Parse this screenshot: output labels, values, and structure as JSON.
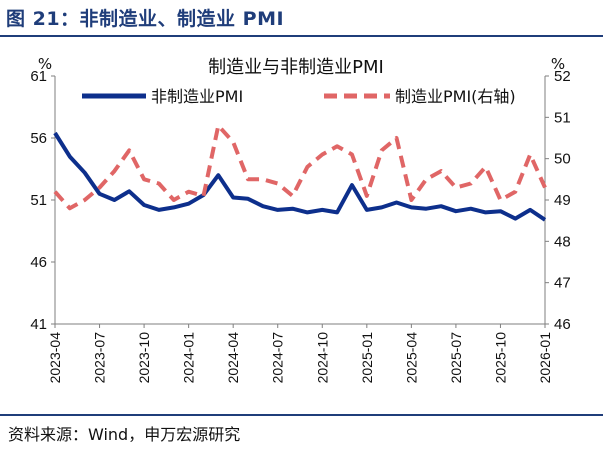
{
  "figure": {
    "title": "图 21：非制造业、制造业 PMI",
    "source": "资料来源：Wind，申万宏源研究"
  },
  "chart_data": {
    "type": "line",
    "title": "制造业与非制造业PMI",
    "y_left_unit": "%",
    "y_right_unit": "%",
    "y_left_lim": [
      41,
      61
    ],
    "y_left_ticks": [
      "61",
      "56",
      "51",
      "46",
      "41"
    ],
    "y_right_lim": [
      46,
      52
    ],
    "y_right_ticks": [
      "52",
      "51",
      "50",
      "49",
      "48",
      "47",
      "46"
    ],
    "x_tick_labels": [
      "2023-04",
      "2023-07",
      "2023-10",
      "2024-01",
      "2024-04",
      "2024-07",
      "2024-10",
      "2025-01",
      "2025-04",
      "2025-07",
      "2025-10",
      "2026-01"
    ],
    "x": [
      "2023-04",
      "2023-05",
      "2023-06",
      "2023-07",
      "2023-08",
      "2023-09",
      "2023-10",
      "2023-11",
      "2023-12",
      "2024-01",
      "2024-02",
      "2024-03",
      "2024-04",
      "2024-05",
      "2024-06",
      "2024-07",
      "2024-08",
      "2024-09",
      "2024-10",
      "2024-11",
      "2024-12",
      "2025-01",
      "2025-02",
      "2025-03",
      "2025-04",
      "2025-05",
      "2025-06",
      "2025-07",
      "2025-08",
      "2025-09",
      "2025-10",
      "2025-11",
      "2025-12",
      "2026-01"
    ],
    "grid": false,
    "legend_position": "top",
    "series": [
      {
        "name": "非制造业PMI",
        "axis": "left",
        "style": "solid",
        "color": "#0d2f8c",
        "values": [
          56.4,
          54.5,
          53.2,
          51.5,
          51.0,
          51.7,
          50.6,
          50.2,
          50.4,
          50.7,
          51.4,
          53.0,
          51.2,
          51.1,
          50.5,
          50.2,
          50.3,
          50.0,
          50.2,
          50.0,
          52.2,
          50.2,
          50.4,
          50.8,
          50.4,
          50.3,
          50.5,
          50.1,
          50.3,
          50.0,
          50.1,
          49.5,
          50.2,
          49.4
        ]
      },
      {
        "name": "制造业PMI(右轴)",
        "axis": "right",
        "style": "dashed",
        "color": "#e06666",
        "values": [
          49.2,
          48.8,
          49.0,
          49.3,
          49.7,
          50.2,
          49.5,
          49.4,
          49.0,
          49.2,
          49.1,
          50.8,
          50.4,
          49.5,
          49.5,
          49.4,
          49.1,
          49.8,
          50.1,
          50.3,
          50.1,
          49.1,
          50.2,
          50.5,
          49.0,
          49.5,
          49.7,
          49.3,
          49.4,
          49.8,
          49.0,
          49.2,
          50.1,
          49.3
        ]
      }
    ]
  }
}
